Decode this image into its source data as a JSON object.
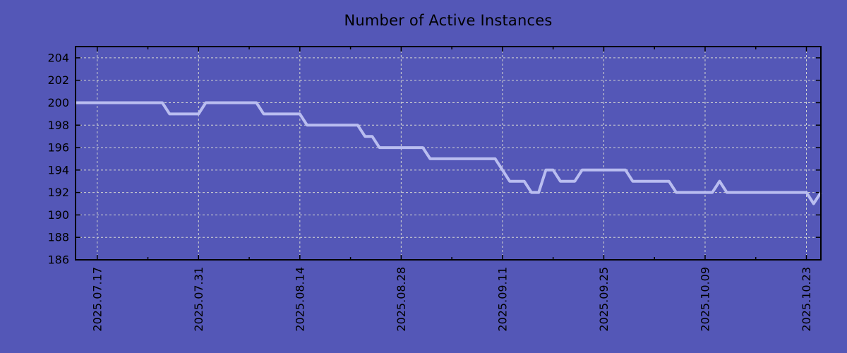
{
  "chart_data": {
    "type": "line",
    "title": "Number of Active Instances",
    "xlabel": "",
    "ylabel": "",
    "legend": "none",
    "grid": true,
    "background_color": "#5457b7",
    "line_color": "#b9bdf0",
    "grid_color": "#d4d6d0",
    "axis_color": "#000000",
    "text_color": "#000000",
    "ylim": [
      186,
      205
    ],
    "y_ticks": [
      186,
      188,
      190,
      192,
      194,
      196,
      198,
      200,
      202,
      204
    ],
    "x_start_date": "2025.07.14",
    "x_interval_days": 1,
    "x_ticks": [
      {
        "index": 3,
        "label": "2025.07.17"
      },
      {
        "index": 17,
        "label": "2025.07.31"
      },
      {
        "index": 31,
        "label": "2025.08.14"
      },
      {
        "index": 45,
        "label": "2025.08.28"
      },
      {
        "index": 59,
        "label": "2025.09.11"
      },
      {
        "index": 73,
        "label": "2025.09.25"
      },
      {
        "index": 87,
        "label": "2025.10.09"
      },
      {
        "index": 101,
        "label": "2025.10.23"
      }
    ],
    "x_minor_tick_indices": [
      10,
      24,
      38,
      52,
      66,
      80,
      94
    ],
    "values": [
      200,
      200,
      200,
      200,
      200,
      200,
      200,
      200,
      200,
      200,
      200,
      200,
      200,
      199,
      199,
      199,
      199,
      199,
      200,
      200,
      200,
      200,
      200,
      200,
      200,
      200,
      199,
      199,
      199,
      199,
      199,
      199,
      198,
      198,
      198,
      198,
      198,
      198,
      198,
      198,
      197,
      197,
      196,
      196,
      196,
      196,
      196,
      196,
      196,
      195,
      195,
      195,
      195,
      195,
      195,
      195,
      195,
      195,
      195,
      194,
      193,
      193,
      193,
      192,
      192,
      194,
      194,
      193,
      193,
      193,
      194,
      194,
      194,
      194,
      194,
      194,
      194,
      193,
      193,
      193,
      193,
      193,
      193,
      192,
      192,
      192,
      192,
      192,
      192,
      193,
      192,
      192,
      192,
      192,
      192,
      192,
      192,
      192,
      192,
      192,
      192,
      192,
      191,
      192
    ]
  }
}
